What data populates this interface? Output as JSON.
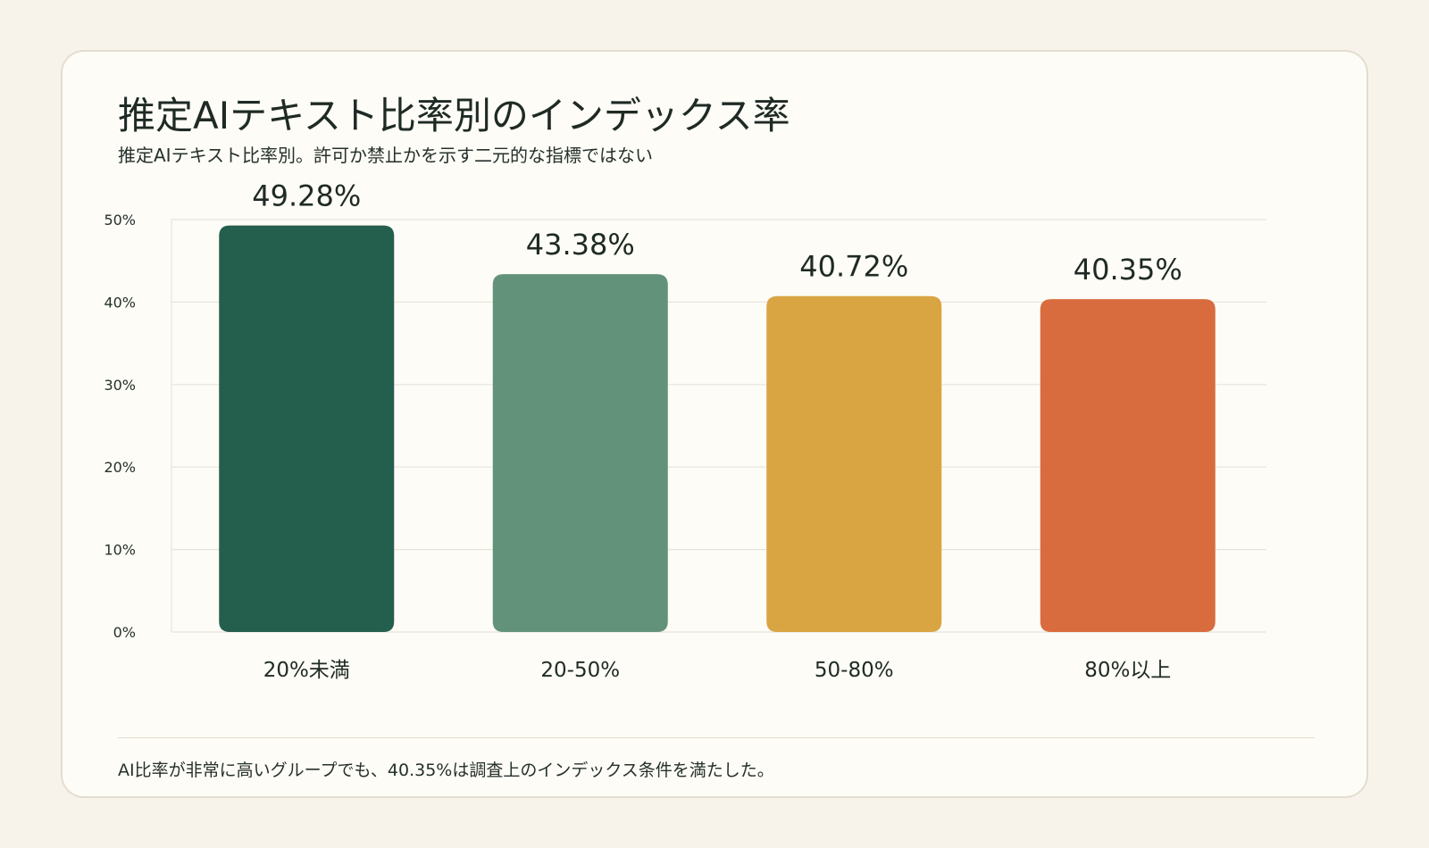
{
  "title": "推定AIテキスト比率別のインデックス率",
  "subtitle": "推定AIテキスト比率別。許可か禁止かを示す二元的な指標ではない",
  "footnote": "AI比率が非常に高いグループでも、40.35%は調査上のインデックス条件を満たした。",
  "chart_data": {
    "type": "bar",
    "categories": [
      "20%未満",
      "20-50%",
      "50-80%",
      "80%以上"
    ],
    "values": [
      49.28,
      43.38,
      40.72,
      40.35
    ],
    "value_labels": [
      "49.28%",
      "43.38%",
      "40.72%",
      "40.35%"
    ],
    "colors": [
      "#245e4d",
      "#62927a",
      "#d9a543",
      "#d96c3e"
    ],
    "ylim": [
      0,
      50
    ],
    "yticks": [
      0,
      10,
      20,
      30,
      40,
      50
    ],
    "ytick_labels": [
      "0%",
      "10%",
      "20%",
      "30%",
      "40%",
      "50%"
    ],
    "grid": true,
    "legend": "none"
  }
}
